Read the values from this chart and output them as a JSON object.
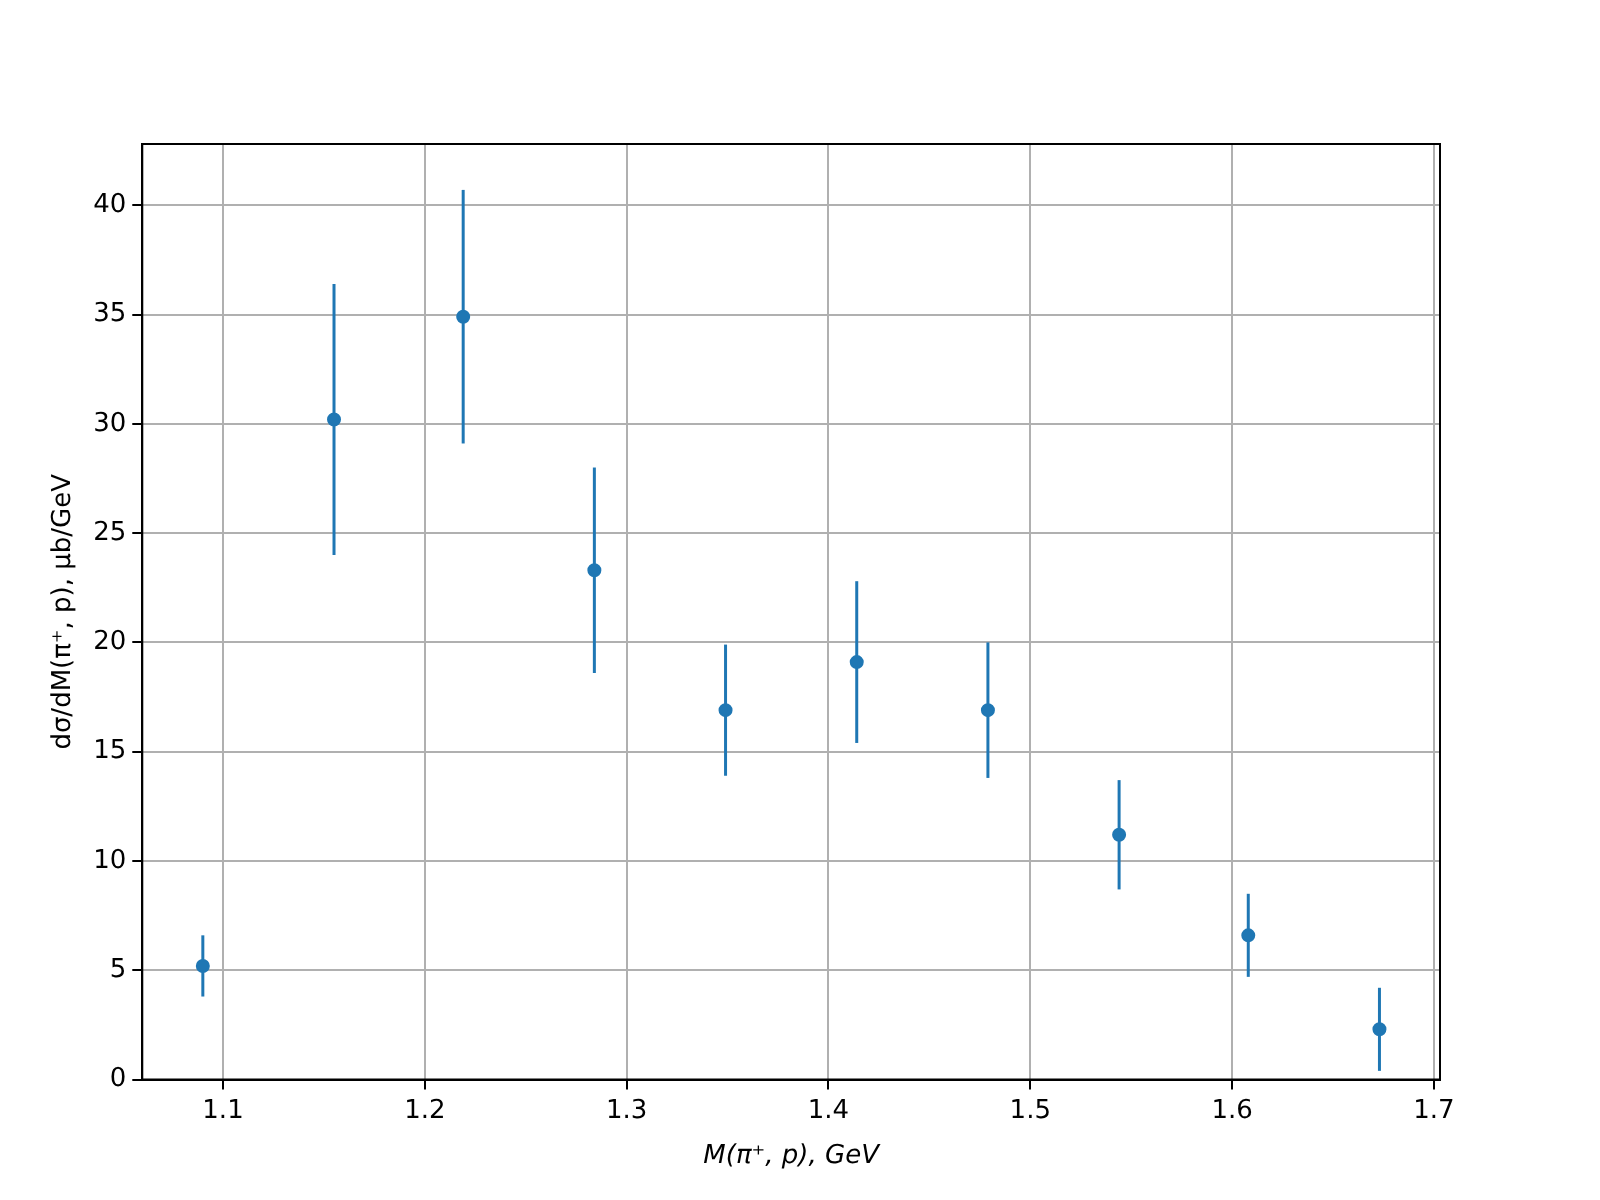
{
  "chart_data": {
    "type": "scatter",
    "xlabel": "M(π⁺, p), GeV",
    "ylabel": "dσ/dM(π⁺, p), μb/GeV",
    "x": [
      1.09,
      1.155,
      1.219,
      1.284,
      1.349,
      1.414,
      1.479,
      1.544,
      1.608,
      1.673
    ],
    "series": [
      {
        "color": "#1f77b4",
        "values": [
          5.2,
          30.2,
          34.9,
          23.3,
          16.9,
          19.1,
          16.9,
          11.2,
          6.6,
          2.3
        ],
        "errors": [
          1.4,
          6.2,
          5.8,
          4.7,
          3.0,
          3.7,
          3.1,
          2.5,
          1.9,
          1.9
        ]
      }
    ],
    "xlim": [
      1.06,
      1.703
    ],
    "xticks": [
      1.1,
      1.2,
      1.3,
      1.4,
      1.5,
      1.6,
      1.7
    ],
    "ylim": [
      0,
      42.8
    ],
    "yticks": [
      0,
      5,
      10,
      15,
      20,
      25,
      30,
      35,
      40
    ],
    "grid": true,
    "marker": "circle",
    "legend": false
  }
}
